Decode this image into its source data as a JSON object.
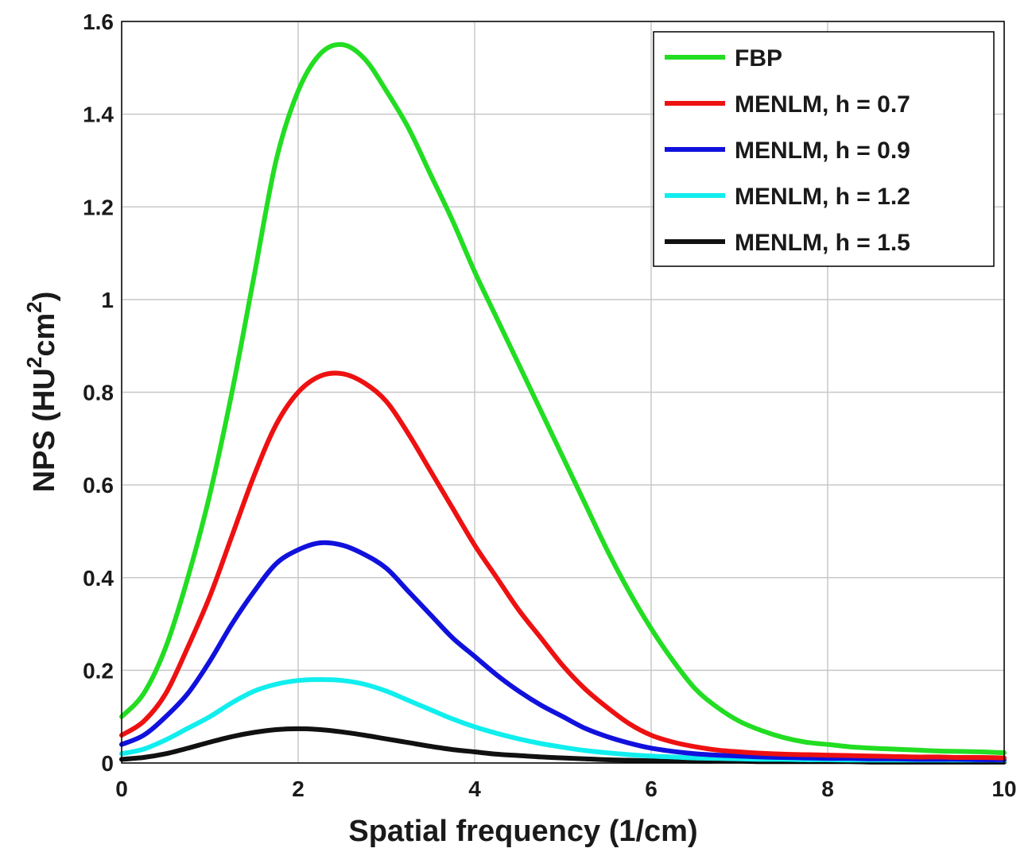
{
  "chart_data": {
    "type": "line",
    "title": "",
    "xlabel": "Spatial frequency (1/cm)",
    "ylabel": {
      "base": "NPS (HU",
      "sup1": "2",
      "mid": "cm",
      "sup2": "2",
      "end": ")"
    },
    "xlim": [
      0,
      10
    ],
    "ylim": [
      0,
      1.6
    ],
    "grid": true,
    "legend_position": "top-right",
    "x_ticks": [
      "0",
      "2",
      "4",
      "6",
      "8",
      "10"
    ],
    "y_ticks": [
      "0",
      "0.2",
      "0.4",
      "0.6",
      "0.8",
      "1",
      "1.2",
      "1.4",
      "1.6"
    ],
    "x": [
      0,
      0.25,
      0.5,
      0.75,
      1,
      1.25,
      1.5,
      1.75,
      2,
      2.25,
      2.5,
      2.75,
      3,
      3.25,
      3.5,
      3.75,
      4,
      4.25,
      4.5,
      4.75,
      5,
      5.25,
      5.5,
      5.75,
      6,
      6.25,
      6.5,
      6.75,
      7,
      7.25,
      7.5,
      7.75,
      8,
      8.25,
      8.5,
      8.75,
      9,
      9.25,
      9.5,
      9.75,
      10
    ],
    "series": [
      {
        "name": "FBP",
        "color": "#22dd22",
        "values": [
          0.1,
          0.15,
          0.25,
          0.4,
          0.58,
          0.8,
          1.05,
          1.3,
          1.45,
          1.53,
          1.55,
          1.52,
          1.45,
          1.37,
          1.27,
          1.17,
          1.06,
          0.96,
          0.86,
          0.76,
          0.66,
          0.56,
          0.46,
          0.37,
          0.29,
          0.22,
          0.16,
          0.12,
          0.09,
          0.07,
          0.055,
          0.045,
          0.04,
          0.035,
          0.032,
          0.03,
          0.028,
          0.026,
          0.025,
          0.024,
          0.022
        ]
      },
      {
        "name": "MENLM, h = 0.7",
        "color": "#ee1111",
        "values": [
          0.06,
          0.09,
          0.15,
          0.25,
          0.36,
          0.49,
          0.62,
          0.73,
          0.8,
          0.835,
          0.84,
          0.82,
          0.78,
          0.71,
          0.63,
          0.55,
          0.47,
          0.4,
          0.33,
          0.27,
          0.21,
          0.16,
          0.12,
          0.085,
          0.06,
          0.045,
          0.035,
          0.028,
          0.024,
          0.021,
          0.019,
          0.018,
          0.017,
          0.016,
          0.015,
          0.014,
          0.013,
          0.013,
          0.012,
          0.012,
          0.011
        ]
      },
      {
        "name": "MENLM, h = 0.9",
        "color": "#1111dd",
        "values": [
          0.04,
          0.06,
          0.1,
          0.15,
          0.22,
          0.3,
          0.37,
          0.43,
          0.46,
          0.475,
          0.47,
          0.45,
          0.42,
          0.37,
          0.32,
          0.27,
          0.23,
          0.19,
          0.155,
          0.125,
          0.1,
          0.075,
          0.057,
          0.043,
          0.032,
          0.025,
          0.02,
          0.017,
          0.015,
          0.013,
          0.012,
          0.011,
          0.01,
          0.01,
          0.009,
          0.009,
          0.008,
          0.008,
          0.008,
          0.007,
          0.007
        ]
      },
      {
        "name": "MENLM, h = 1.2",
        "color": "#11eeee",
        "values": [
          0.02,
          0.03,
          0.05,
          0.075,
          0.1,
          0.13,
          0.155,
          0.17,
          0.178,
          0.18,
          0.178,
          0.17,
          0.155,
          0.135,
          0.115,
          0.095,
          0.078,
          0.064,
          0.052,
          0.042,
          0.034,
          0.027,
          0.022,
          0.018,
          0.015,
          0.013,
          0.011,
          0.01,
          0.009,
          0.008,
          0.008,
          0.007,
          0.007,
          0.006,
          0.006,
          0.006,
          0.005,
          0.005,
          0.005,
          0.005,
          0.005
        ]
      },
      {
        "name": "MENLM, h = 1.5",
        "color": "#111111",
        "values": [
          0.008,
          0.012,
          0.02,
          0.032,
          0.045,
          0.057,
          0.066,
          0.072,
          0.074,
          0.072,
          0.067,
          0.06,
          0.052,
          0.044,
          0.036,
          0.029,
          0.024,
          0.019,
          0.016,
          0.013,
          0.011,
          0.009,
          0.007,
          0.006,
          0.005,
          0.005,
          0.004,
          0.004,
          0.004,
          0.003,
          0.003,
          0.003,
          0.003,
          0.003,
          0.002,
          0.002,
          0.002,
          0.002,
          0.002,
          0.002,
          0.002
        ]
      }
    ]
  }
}
